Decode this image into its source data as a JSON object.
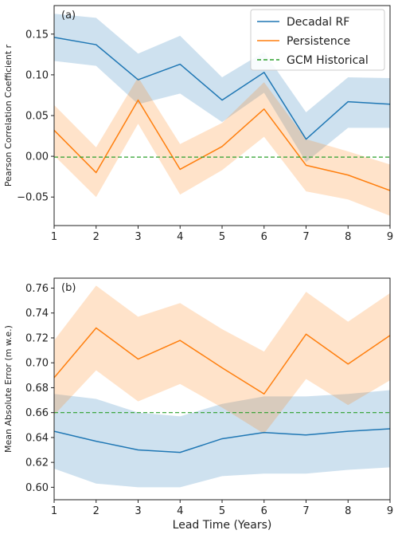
{
  "chart_data": [
    {
      "type": "line",
      "panel_label": "(a)",
      "ylabel": "Pearson Correlation Coefficient r",
      "xlabel": "",
      "x": [
        1,
        2,
        3,
        4,
        5,
        6,
        7,
        8,
        9
      ],
      "xlim": [
        1,
        9
      ],
      "ylim": [
        -0.085,
        0.185
      ],
      "yticks": [
        -0.05,
        0.0,
        0.05,
        0.1,
        0.15
      ],
      "ytick_labels": [
        "−0.05",
        "0.00",
        "0.05",
        "0.10",
        "0.15"
      ],
      "xtick_labels": [
        "1",
        "2",
        "3",
        "4",
        "5",
        "6",
        "7",
        "8",
        "9"
      ],
      "grid": false,
      "legend_position": "top-right",
      "series": [
        {
          "name": "Decadal RF",
          "color": "#1f77b4",
          "values": [
            0.146,
            0.137,
            0.094,
            0.113,
            0.069,
            0.103,
            0.021,
            0.067,
            0.064
          ],
          "band_upper": [
            0.175,
            0.17,
            0.126,
            0.148,
            0.097,
            0.128,
            0.054,
            0.097,
            0.096
          ],
          "band_lower": [
            0.117,
            0.111,
            0.064,
            0.077,
            0.042,
            0.078,
            -0.007,
            0.035,
            0.035
          ]
        },
        {
          "name": "Persistence",
          "color": "#ff7f0e",
          "values": [
            0.032,
            -0.02,
            0.069,
            -0.016,
            0.012,
            0.058,
            -0.011,
            -0.023,
            -0.042
          ],
          "band_upper": [
            0.063,
            0.011,
            0.097,
            0.015,
            0.041,
            0.091,
            0.021,
            0.006,
            -0.01
          ],
          "band_lower": [
            0.001,
            -0.05,
            0.04,
            -0.047,
            -0.017,
            0.024,
            -0.043,
            -0.053,
            -0.073
          ]
        },
        {
          "name": "GCM Historical",
          "color": "#2ca02c",
          "dashed": true,
          "values": [
            -0.001,
            -0.001,
            -0.001,
            -0.001,
            -0.001,
            -0.001,
            -0.001,
            -0.001,
            -0.001
          ]
        }
      ]
    },
    {
      "type": "line",
      "panel_label": "(b)",
      "ylabel": "Mean Absolute Error (m w.e.)",
      "xlabel": "Lead Time (Years)",
      "x": [
        1,
        2,
        3,
        4,
        5,
        6,
        7,
        8,
        9
      ],
      "xlim": [
        1,
        9
      ],
      "ylim": [
        0.59,
        0.768
      ],
      "yticks": [
        0.6,
        0.62,
        0.64,
        0.66,
        0.68,
        0.7,
        0.72,
        0.74,
        0.76
      ],
      "ytick_labels": [
        "0.60",
        "0.62",
        "0.64",
        "0.66",
        "0.68",
        "0.70",
        "0.72",
        "0.74",
        "0.76"
      ],
      "xtick_labels": [
        "1",
        "2",
        "3",
        "4",
        "5",
        "6",
        "7",
        "8",
        "9"
      ],
      "grid": false,
      "series": [
        {
          "name": "Decadal RF",
          "color": "#1f77b4",
          "values": [
            0.645,
            0.637,
            0.63,
            0.628,
            0.639,
            0.644,
            0.642,
            0.645,
            0.647
          ],
          "band_upper": [
            0.675,
            0.671,
            0.66,
            0.657,
            0.667,
            0.673,
            0.673,
            0.675,
            0.678
          ],
          "band_lower": [
            0.615,
            0.603,
            0.6,
            0.6,
            0.609,
            0.611,
            0.611,
            0.614,
            0.616
          ]
        },
        {
          "name": "Persistence",
          "color": "#ff7f0e",
          "values": [
            0.688,
            0.728,
            0.703,
            0.718,
            0.696,
            0.675,
            0.723,
            0.699,
            0.722
          ],
          "band_upper": [
            0.718,
            0.762,
            0.737,
            0.748,
            0.727,
            0.709,
            0.757,
            0.733,
            0.756
          ],
          "band_lower": [
            0.658,
            0.694,
            0.669,
            0.683,
            0.664,
            0.643,
            0.687,
            0.666,
            0.686
          ]
        },
        {
          "name": "GCM Historical",
          "color": "#2ca02c",
          "dashed": true,
          "values": [
            0.66,
            0.66,
            0.66,
            0.66,
            0.66,
            0.66,
            0.66,
            0.66,
            0.66
          ]
        }
      ]
    }
  ]
}
